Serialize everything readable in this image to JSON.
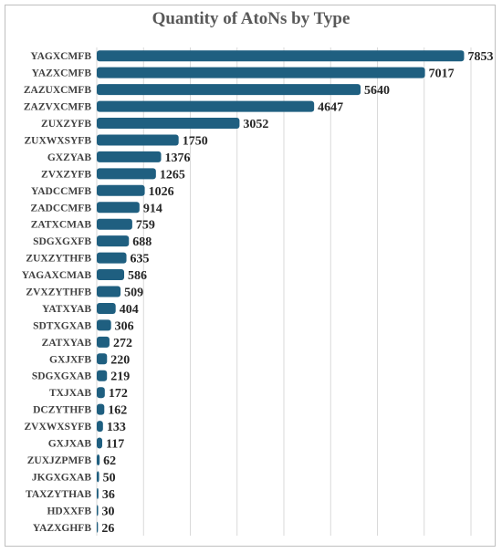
{
  "chart_data": {
    "type": "bar",
    "orientation": "horizontal",
    "title": "Quantity of AtoNs by Type",
    "xlabel": "",
    "ylabel": "",
    "xlim": [
      0,
      8000
    ],
    "grid": true,
    "legend": "none",
    "bar_color": "#1f5f80",
    "grid_color": "#d9d9d9",
    "categories": [
      "YAGXCMFB",
      "YAZXCMFB",
      "ZAZUXCMFB",
      "ZAZVXCMFB",
      "ZUXZYFB",
      "ZUXWXSYFB",
      "GXZYAB",
      "ZVXZYFB",
      "YADCCMFB",
      "ZADCCMFB",
      "ZATXCMAB",
      "SDGXGXFB",
      "ZUXZYTHFB",
      "YAGAXCMAB",
      "ZVXZYTHFB",
      "YATXYAB",
      "SDTXGXAB",
      "ZATXYAB",
      "GXJXFB",
      "SDGXGXAB",
      "TXJXAB",
      "DCZYTHFB",
      "ZVXWXSYFB",
      "GXJXAB",
      "ZUXJZPMFB",
      "JKGXGXAB",
      "TAXZYTHAB",
      "HDXXFB",
      "YAZXGHFB"
    ],
    "values": [
      7853,
      7017,
      5640,
      4647,
      3052,
      1750,
      1376,
      1265,
      1026,
      914,
      759,
      688,
      635,
      586,
      509,
      404,
      306,
      272,
      220,
      219,
      172,
      162,
      133,
      117,
      62,
      50,
      36,
      30,
      26
    ]
  }
}
